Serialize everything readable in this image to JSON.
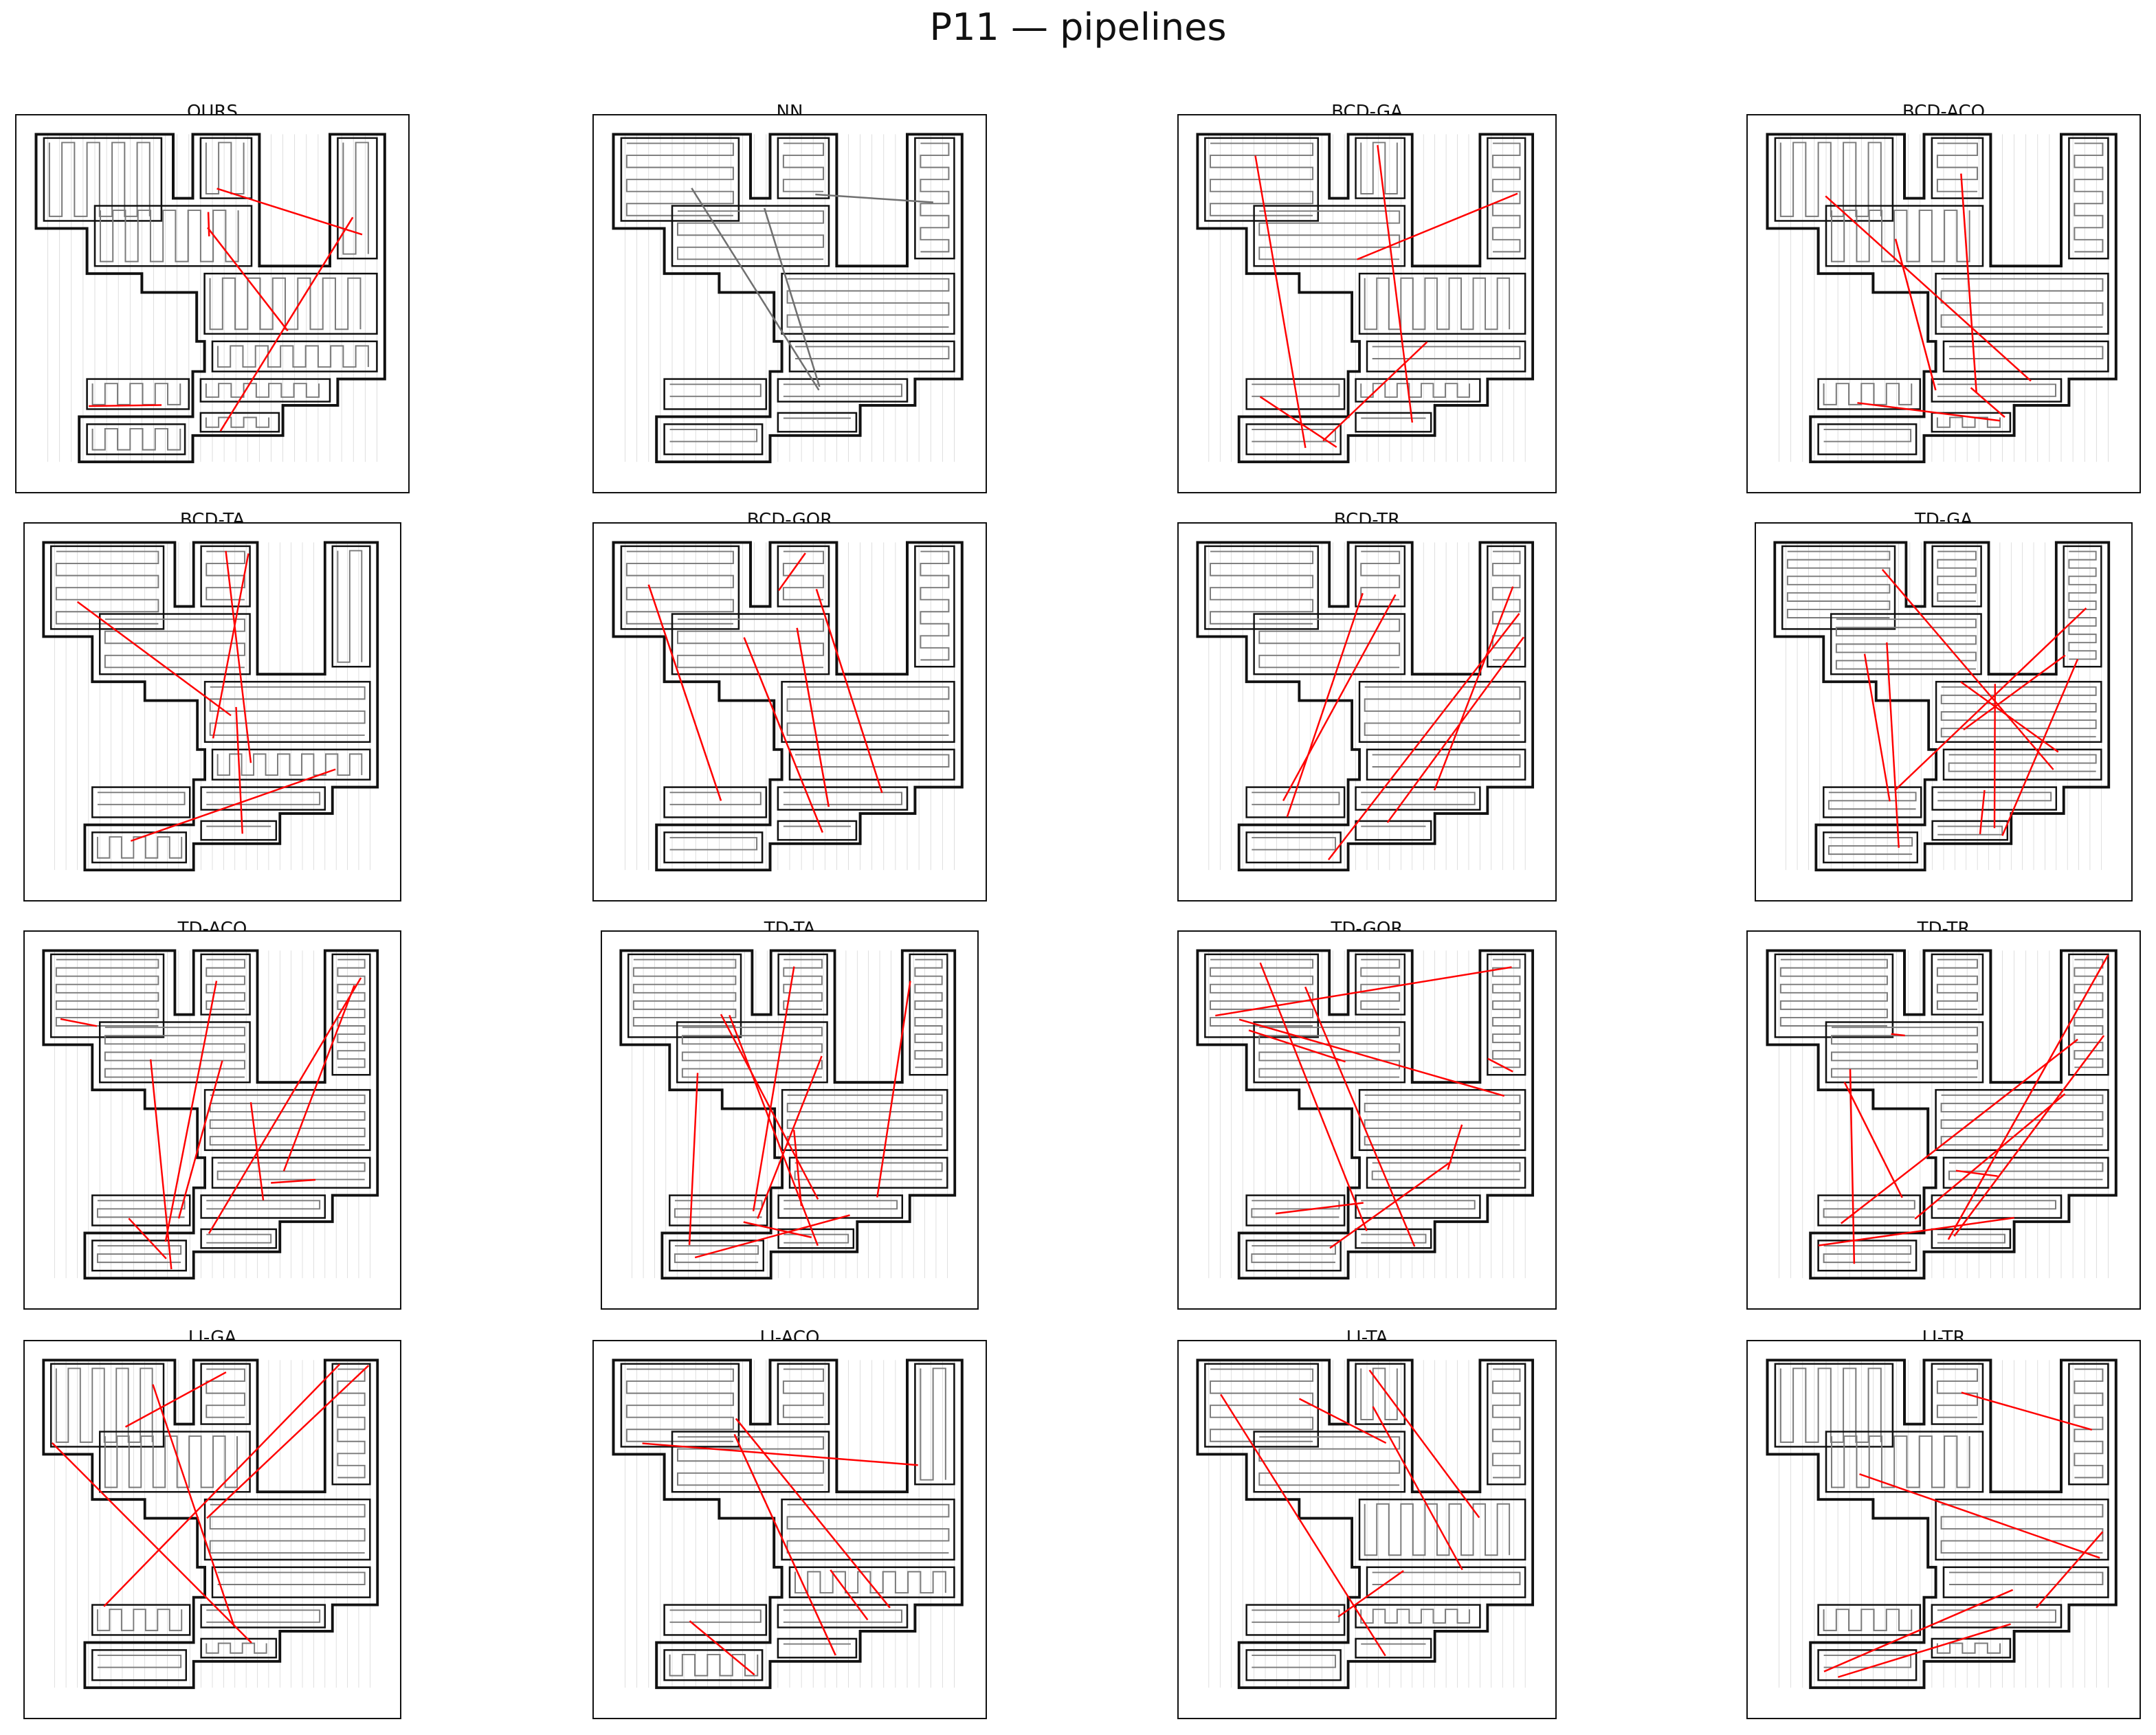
{
  "figure_title": "P11 — pipelines",
  "colors": {
    "boundary": "#111111",
    "coverage_path": "#7a7a7a",
    "grid": "#cfcfcf",
    "transition_red": "#ff0000",
    "transition_gray": "#707070"
  },
  "panels": [
    {
      "label": "OURS",
      "style": "vertical"
    },
    {
      "label": "NN",
      "style": "horizontal"
    },
    {
      "label": "BCD-GA",
      "style": "mixed"
    },
    {
      "label": "BCD-ACO",
      "style": "mixed"
    },
    {
      "label": "BCD-TA",
      "style": "mixed"
    },
    {
      "label": "BCD-GOR",
      "style": "horizontal"
    },
    {
      "label": "BCD-TR",
      "style": "horizontal"
    },
    {
      "label": "TD-GA",
      "style": "stripes"
    },
    {
      "label": "TD-ACO",
      "style": "stripes"
    },
    {
      "label": "TD-TA",
      "style": "stripes"
    },
    {
      "label": "TD-GOR",
      "style": "stripes"
    },
    {
      "label": "TD-TR",
      "style": "stripes"
    },
    {
      "label": "LI-GA",
      "style": "mixed"
    },
    {
      "label": "LI-ACO",
      "style": "mixed"
    },
    {
      "label": "LI-TA",
      "style": "mixed"
    },
    {
      "label": "LI-TR",
      "style": "mixed"
    }
  ]
}
